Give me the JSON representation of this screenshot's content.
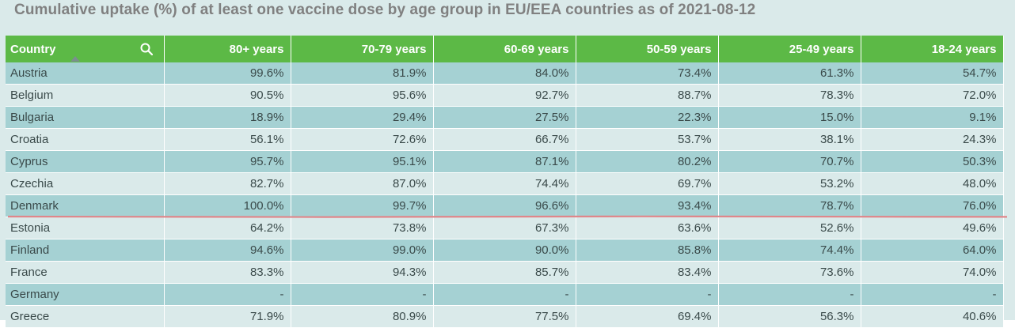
{
  "title": "Cumulative uptake (%) of at least one vaccine dose by age group in EU/EEA countries as of 2021-08-12",
  "columns": [
    "Country",
    "80+ years",
    "70-79 years",
    "60-69 years",
    "50-59 years",
    "25-49 years",
    "18-24 years"
  ],
  "rows": [
    [
      "Austria",
      "99.6%",
      "81.9%",
      "84.0%",
      "73.4%",
      "61.3%",
      "54.7%"
    ],
    [
      "Belgium",
      "90.5%",
      "95.6%",
      "92.7%",
      "88.7%",
      "78.3%",
      "72.0%"
    ],
    [
      "Bulgaria",
      "18.9%",
      "29.4%",
      "27.5%",
      "22.3%",
      "15.0%",
      "9.1%"
    ],
    [
      "Croatia",
      "56.1%",
      "72.6%",
      "66.7%",
      "53.7%",
      "38.1%",
      "24.3%"
    ],
    [
      "Cyprus",
      "95.7%",
      "95.1%",
      "87.1%",
      "80.2%",
      "70.7%",
      "50.3%"
    ],
    [
      "Czechia",
      "82.7%",
      "87.0%",
      "74.4%",
      "69.7%",
      "53.2%",
      "48.0%"
    ],
    [
      "Denmark",
      "100.0%",
      "99.7%",
      "96.6%",
      "93.4%",
      "78.7%",
      "76.0%"
    ],
    [
      "Estonia",
      "64.2%",
      "73.8%",
      "67.3%",
      "63.6%",
      "52.6%",
      "49.6%"
    ],
    [
      "Finland",
      "94.6%",
      "99.0%",
      "90.0%",
      "85.8%",
      "74.4%",
      "64.0%"
    ],
    [
      "France",
      "83.3%",
      "94.3%",
      "85.7%",
      "83.4%",
      "73.6%",
      "74.0%"
    ],
    [
      "Germany",
      "-",
      "-",
      "-",
      "-",
      "-",
      "-"
    ],
    [
      "Greece",
      "71.9%",
      "80.9%",
      "77.5%",
      "69.4%",
      "56.3%",
      "40.6%"
    ]
  ],
  "colors": {
    "header_bg": "#5cb946",
    "row_dark": "#a5d1d3",
    "row_light": "#daeaea",
    "title_text": "#808080",
    "annotation_line": "#e0868a"
  },
  "icons": {
    "search": "search-icon",
    "sort": "sort-ascending-icon"
  }
}
